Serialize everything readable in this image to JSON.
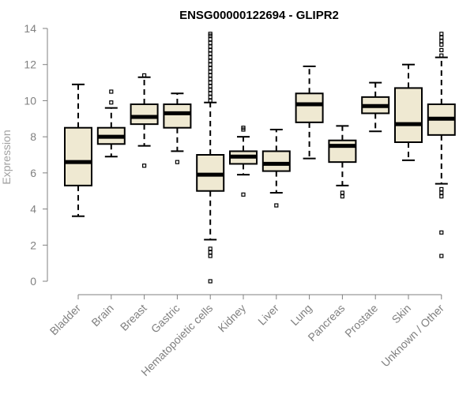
{
  "chart_data": {
    "type": "boxplot",
    "title": "ENSG00000122694 - GLIPR2",
    "ylabel": "Expression",
    "xlabel": "",
    "ylim": [
      0,
      14
    ],
    "yticks": [
      "0",
      "2",
      "4",
      "6",
      "8",
      "10",
      "12",
      "14"
    ],
    "box_fill": "#efe9d2",
    "categories": [
      "Bladder",
      "Brain",
      "Breast",
      "Gastric",
      "Hematopoietic cells",
      "Kidney",
      "Liver",
      "Lung",
      "Pancreas",
      "Prostate",
      "Skin",
      "Unknown / Other"
    ],
    "boxes": [
      {
        "category": "Bladder",
        "whisker_low": 3.6,
        "q1": 5.3,
        "median": 6.6,
        "q3": 8.5,
        "whisker_high": 10.9,
        "outliers": []
      },
      {
        "category": "Brain",
        "whisker_low": 6.9,
        "q1": 7.6,
        "median": 8.0,
        "q3": 8.5,
        "whisker_high": 9.6,
        "outliers": [
          9.9,
          10.5
        ]
      },
      {
        "category": "Breast",
        "whisker_low": 7.5,
        "q1": 8.7,
        "median": 9.1,
        "q3": 9.8,
        "whisker_high": 11.3,
        "outliers": [
          6.4,
          11.4
        ]
      },
      {
        "category": "Gastric",
        "whisker_low": 7.2,
        "q1": 8.5,
        "median": 9.3,
        "q3": 9.8,
        "whisker_high": 10.4,
        "outliers": [
          6.6
        ]
      },
      {
        "category": "Hematopoietic cells",
        "whisker_low": 2.3,
        "q1": 5.0,
        "median": 5.9,
        "q3": 7.0,
        "whisker_high": 9.9,
        "outliers": [
          0.0,
          1.4,
          1.6,
          1.8,
          10.0,
          10.2,
          10.4,
          10.6,
          10.8,
          11.0,
          11.2,
          11.4,
          11.6,
          11.8,
          12.0,
          12.2,
          12.4,
          12.6,
          12.8,
          13.0,
          13.2,
          13.4,
          13.6,
          13.7
        ]
      },
      {
        "category": "Kidney",
        "whisker_low": 5.9,
        "q1": 6.5,
        "median": 6.9,
        "q3": 7.2,
        "whisker_high": 8.0,
        "outliers": [
          4.8,
          8.4,
          8.5
        ]
      },
      {
        "category": "Liver",
        "whisker_low": 4.9,
        "q1": 6.1,
        "median": 6.5,
        "q3": 7.2,
        "whisker_high": 8.4,
        "outliers": [
          4.2
        ]
      },
      {
        "category": "Lung",
        "whisker_low": 6.8,
        "q1": 8.8,
        "median": 9.8,
        "q3": 10.4,
        "whisker_high": 11.9,
        "outliers": []
      },
      {
        "category": "Pancreas",
        "whisker_low": 5.3,
        "q1": 6.6,
        "median": 7.5,
        "q3": 7.8,
        "whisker_high": 8.6,
        "outliers": [
          4.7,
          4.9
        ]
      },
      {
        "category": "Prostate",
        "whisker_low": 8.3,
        "q1": 9.3,
        "median": 9.7,
        "q3": 10.2,
        "whisker_high": 11.0,
        "outliers": []
      },
      {
        "category": "Skin",
        "whisker_low": 6.7,
        "q1": 7.7,
        "median": 8.7,
        "q3": 10.7,
        "whisker_high": 12.0,
        "outliers": []
      },
      {
        "category": "Unknown / Other",
        "whisker_low": 5.4,
        "q1": 8.1,
        "median": 9.0,
        "q3": 9.8,
        "whisker_high": 12.4,
        "outliers": [
          1.4,
          2.7,
          4.7,
          4.9,
          5.1,
          12.5,
          12.8,
          13.1,
          13.3,
          13.5,
          13.7
        ]
      }
    ]
  }
}
